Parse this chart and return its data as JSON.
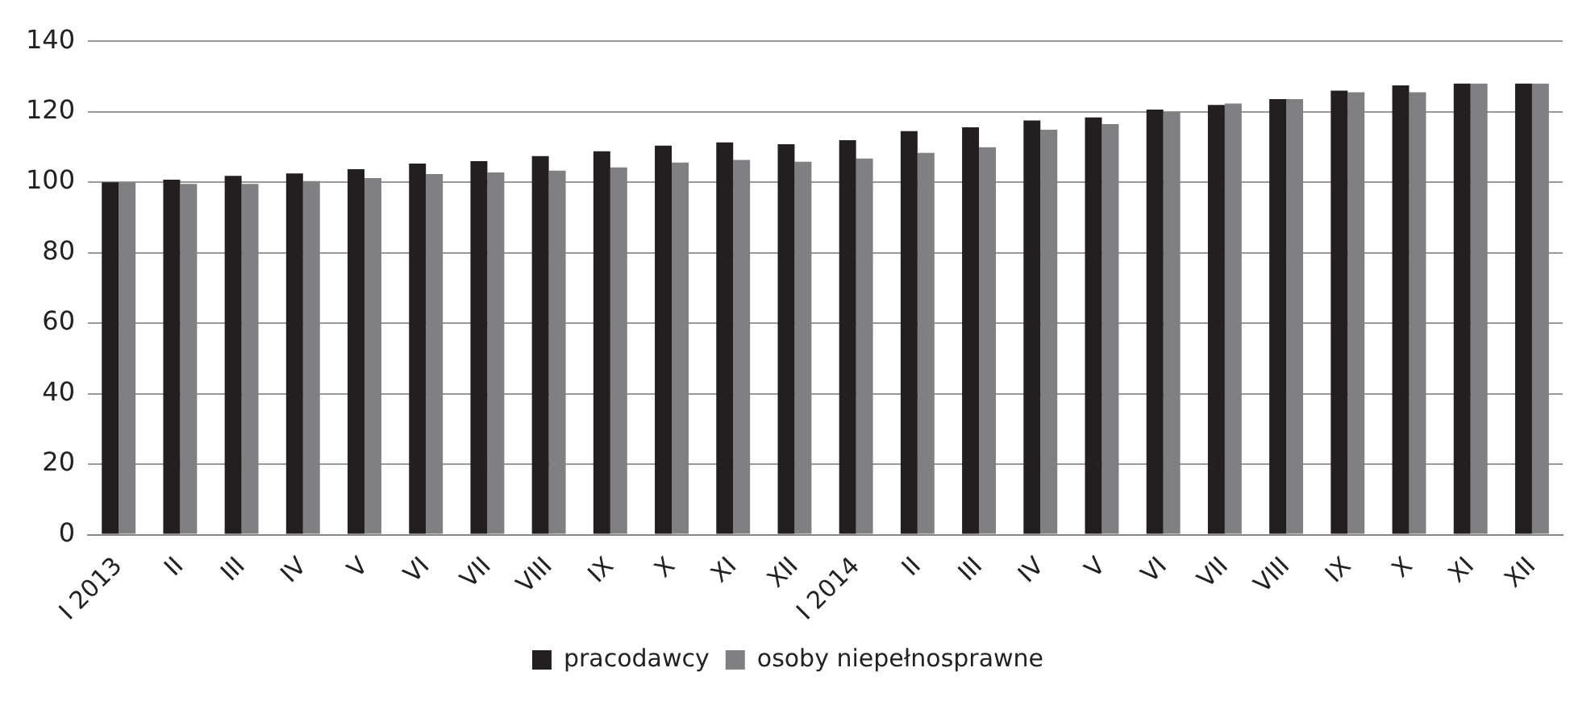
{
  "chart_data": {
    "type": "bar",
    "categories": [
      "I 2013",
      "II",
      "III",
      "IV",
      "V",
      "VI",
      "VII",
      "VIII",
      "IX",
      "X",
      "XI",
      "XII",
      "I 2014",
      "II",
      "III",
      "IV",
      "V",
      "VI",
      "VII",
      "VIII",
      "IX",
      "X",
      "XI",
      "XII"
    ],
    "series": [
      {
        "name": "pracodawcy",
        "color": "#231f20",
        "values": [
          100,
          100.7,
          101.8,
          102.5,
          103.7,
          105.3,
          106,
          107.4,
          108.8,
          110.4,
          111.3,
          110.8,
          111.9,
          114.5,
          115.6,
          117.5,
          118.4,
          120.6,
          121.9,
          123.6,
          126,
          127.5,
          128,
          128
        ]
      },
      {
        "name": "osoby niepełnosprawne",
        "color": "#808083",
        "values": [
          100,
          99.5,
          99.5,
          100.3,
          101.2,
          102.3,
          102.8,
          103.3,
          104.2,
          105.6,
          106.3,
          105.8,
          106.7,
          108.3,
          109.9,
          114.9,
          116.5,
          120,
          122.3,
          123.6,
          125.5,
          125.5,
          128,
          128
        ]
      }
    ],
    "ylim": [
      0,
      140
    ],
    "yticks": [
      0,
      20,
      40,
      60,
      80,
      100,
      120,
      140
    ],
    "grid": "y",
    "legend": "bottom"
  }
}
